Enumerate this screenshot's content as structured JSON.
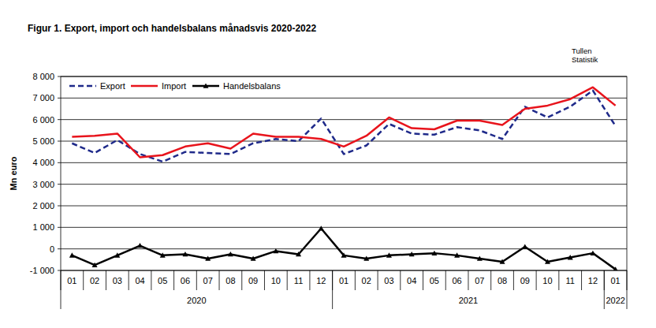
{
  "chart_data": {
    "type": "line",
    "title": "Figur 1. Export, import och handelsbalans månadsvis 2020-2022",
    "source": [
      "Tullen",
      "Statistik"
    ],
    "y_label": "Mn euro",
    "categories": [
      "01",
      "02",
      "03",
      "04",
      "05",
      "06",
      "07",
      "08",
      "09",
      "10",
      "11",
      "12",
      "01",
      "02",
      "03",
      "04",
      "05",
      "06",
      "07",
      "08",
      "09",
      "10",
      "11",
      "12",
      "01"
    ],
    "groups": [
      {
        "label": "2020",
        "count": 12
      },
      {
        "label": "2021",
        "count": 12
      },
      {
        "label": "2022",
        "count": 1
      }
    ],
    "series": [
      {
        "name": "Export",
        "color": "#1f2a8a",
        "line_style": "dashed",
        "marker": "none",
        "values": [
          4900,
          4450,
          5050,
          4400,
          4050,
          4500,
          4450,
          4400,
          4900,
          5100,
          5000,
          6050,
          4400,
          4800,
          5800,
          5350,
          5300,
          5650,
          5500,
          5100,
          6600,
          6100,
          6600,
          7350,
          5700
        ]
      },
      {
        "name": "Import",
        "color": "#e8141c",
        "line_style": "solid",
        "marker": "none",
        "values": [
          5200,
          5250,
          5350,
          4250,
          4350,
          4750,
          4900,
          4650,
          5350,
          5200,
          5200,
          5100,
          4750,
          5250,
          6100,
          5600,
          5550,
          5950,
          5950,
          5750,
          6500,
          6650,
          6950,
          7500,
          6650
        ]
      },
      {
        "name": "Handelsbalans",
        "color": "#000000",
        "line_style": "solid",
        "marker": "triangle",
        "values": [
          -300,
          -750,
          -300,
          150,
          -300,
          -250,
          -450,
          -250,
          -450,
          -100,
          -250,
          950,
          -300,
          -450,
          -300,
          -250,
          -200,
          -300,
          -450,
          -600,
          100,
          -600,
          -400,
          -200,
          -950
        ]
      }
    ],
    "ylim": [
      -1000,
      8000
    ],
    "yticks": [
      {
        "value": -1000,
        "label": "-1 000"
      },
      0,
      {
        "value": 1000,
        "label": "1 000"
      },
      {
        "value": 2000,
        "label": "2 000"
      },
      {
        "value": 3000,
        "label": "3 000"
      },
      {
        "value": 4000,
        "label": "4 000"
      },
      {
        "value": 5000,
        "label": "5 000"
      },
      {
        "value": 6000,
        "label": "6 000"
      },
      {
        "value": 7000,
        "label": "7 000"
      },
      {
        "value": 8000,
        "label": "8 000"
      }
    ],
    "grid": true,
    "legend": "upper left"
  }
}
